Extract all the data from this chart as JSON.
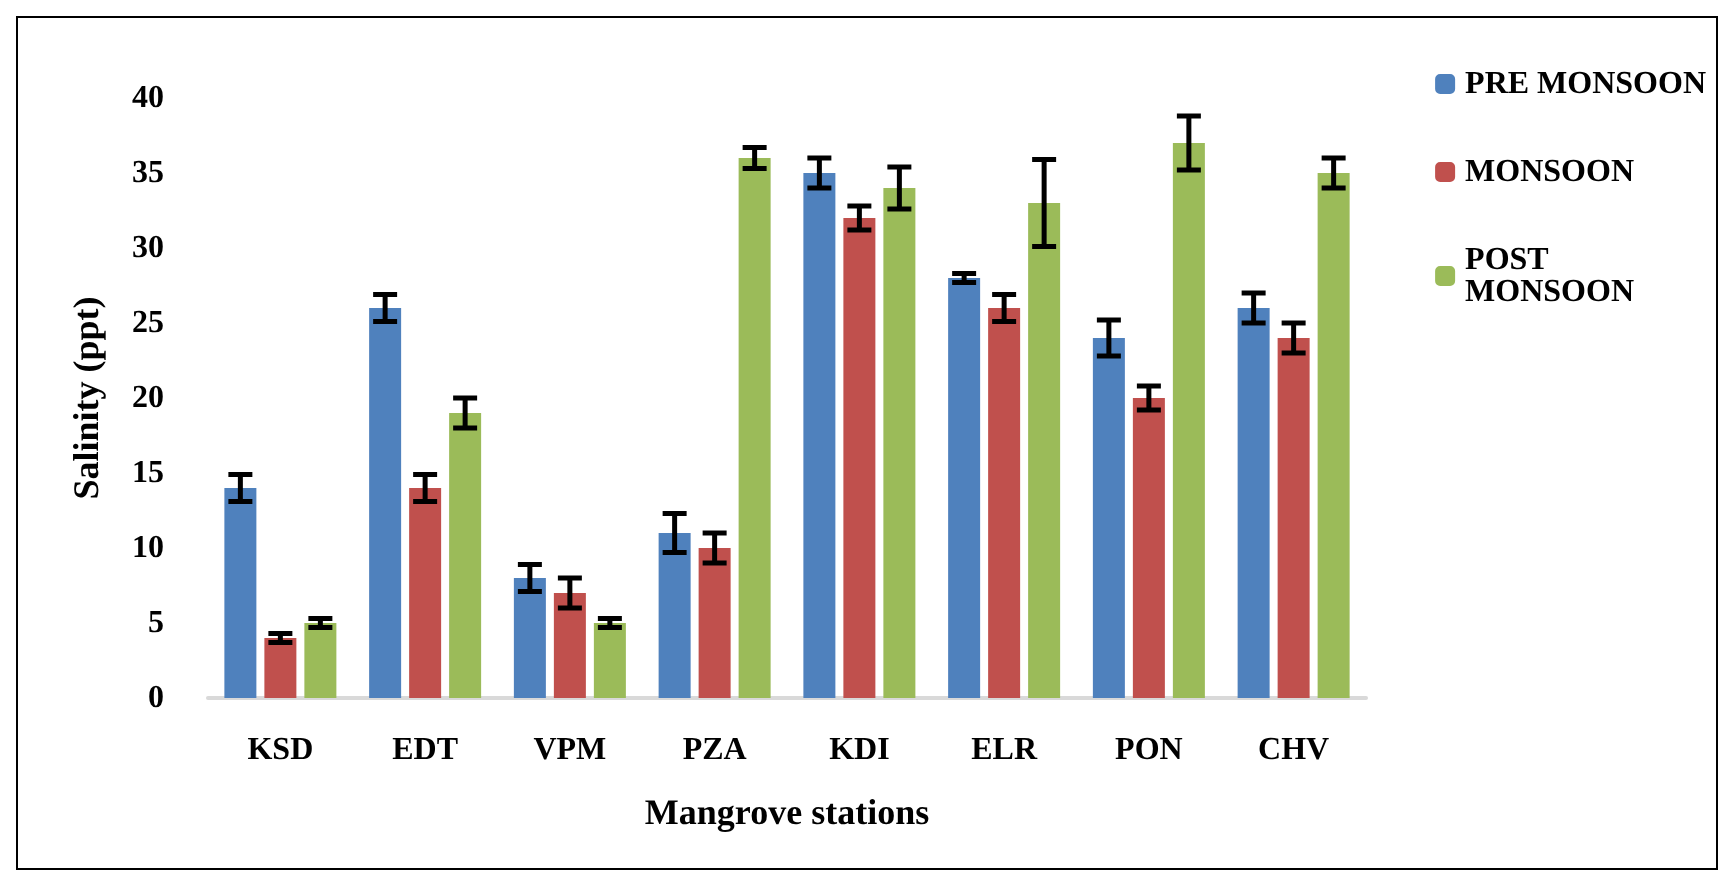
{
  "chart_data": {
    "type": "bar",
    "xlabel": "Mangrove stations",
    "ylabel": "Salinity (ppt)",
    "categories": [
      "KSD",
      "EDT",
      "VPM",
      "PZA",
      "KDI",
      "ELR",
      "PON",
      "CHV"
    ],
    "series": [
      {
        "name": "PRE MONSOON",
        "color": "#4f81bd",
        "values": [
          14,
          26,
          8,
          11,
          35,
          28,
          24,
          26
        ],
        "errors": [
          0.9,
          0.9,
          0.9,
          1.3,
          1,
          0.3,
          1.2,
          1
        ]
      },
      {
        "name": "MONSOON",
        "color": "#c0504d",
        "values": [
          4,
          14,
          7,
          10,
          32,
          26,
          20,
          24
        ],
        "errors": [
          0.3,
          0.9,
          1,
          1,
          0.8,
          0.9,
          0.8,
          1
        ]
      },
      {
        "name": "POST\nMONSOON",
        "color": "#9bbb59",
        "values": [
          5,
          19,
          5,
          36,
          34,
          33,
          37,
          35
        ],
        "errors": [
          0.3,
          1,
          0.3,
          0.7,
          1.4,
          2.9,
          1.8,
          1
        ]
      }
    ],
    "ylim": [
      0,
      40
    ],
    "yticks": [
      0,
      5,
      10,
      15,
      20,
      25,
      30,
      35,
      40
    ],
    "grid": false,
    "legend": "right"
  }
}
